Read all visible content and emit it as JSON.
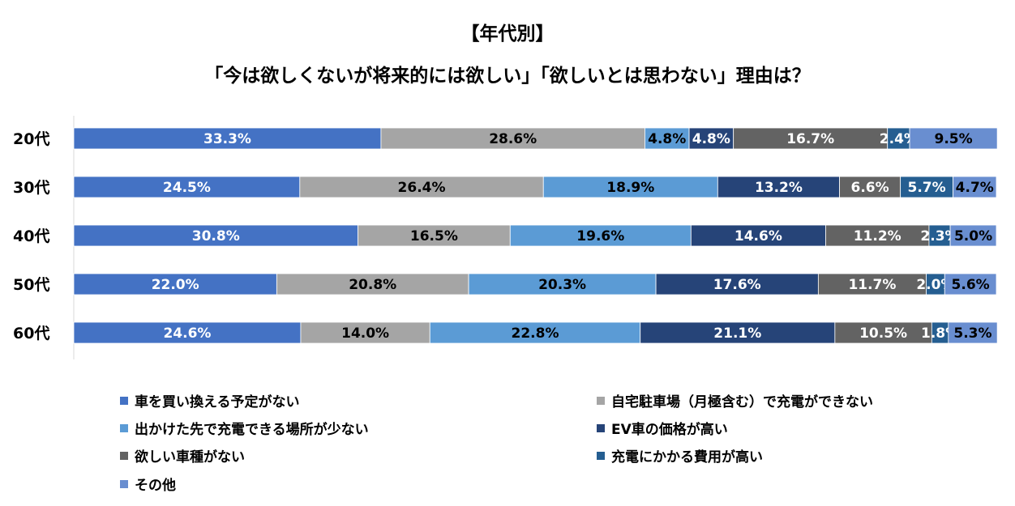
{
  "chart_data": {
    "type": "bar",
    "orientation": "horizontal",
    "stacked": true,
    "percent": true,
    "title": "【年代別】",
    "subtitle": "「今は欲しくないが将来的には欲しい」「欲しいとは思わない」理由は？",
    "categories": [
      "20代",
      "30代",
      "40代",
      "50代",
      "60代"
    ],
    "series": [
      {
        "name": "車を買い換える予定がない",
        "color": "#4472C4",
        "label_color": "#FFFFFF",
        "values": [
          33.3,
          24.5,
          30.8,
          22.0,
          24.6
        ],
        "labels": [
          "33.3%",
          "24.5%",
          "30.8%",
          "22.0%",
          "24.6%"
        ]
      },
      {
        "name": "自宅駐車場（月極含む）で充電ができない",
        "color": "#A5A5A5",
        "label_color": "#000000",
        "values": [
          28.6,
          26.4,
          16.5,
          20.8,
          14.0
        ],
        "labels": [
          "28.6%",
          "26.4%",
          "16.5%",
          "20.8%",
          "14.0%"
        ]
      },
      {
        "name": "出かけた先で充電できる場所が少ない",
        "color": "#5B9BD5",
        "label_color": "#000000",
        "values": [
          4.8,
          18.9,
          19.6,
          20.3,
          22.8
        ],
        "labels": [
          "4.8%",
          "18.9%",
          "19.6%",
          "20.3%",
          "22.8%"
        ]
      },
      {
        "name": "EV車の価格が高い",
        "color": "#264478",
        "label_color": "#FFFFFF",
        "values": [
          4.8,
          13.2,
          14.6,
          17.6,
          21.1
        ],
        "labels": [
          "4.8%",
          "13.2%",
          "14.6%",
          "17.6%",
          "21.1%"
        ]
      },
      {
        "name": "欲しい車種がない",
        "color": "#636363",
        "label_color": "#FFFFFF",
        "values": [
          16.7,
          6.6,
          11.2,
          11.7,
          10.5
        ],
        "labels": [
          "16.7%",
          "6.6%",
          "11.2%",
          "11.7%",
          "10.5%"
        ]
      },
      {
        "name": "充電にかかる費用が高い",
        "color": "#255E91",
        "label_color": "#FFFFFF",
        "values": [
          2.4,
          5.7,
          2.3,
          2.0,
          1.8
        ],
        "labels": [
          "2.4%",
          "5.7%",
          "2.3%",
          "2.0%",
          "1.8%"
        ]
      },
      {
        "name": "その他",
        "color": "#698ED0",
        "label_color": "#000000",
        "values": [
          9.5,
          4.7,
          5.0,
          5.6,
          5.3
        ],
        "labels": [
          "9.5%",
          "4.7%",
          "5.0%",
          "5.6%",
          "5.3%"
        ]
      }
    ],
    "xlim": [
      0,
      100
    ],
    "grid": false,
    "legend_position": "bottom"
  }
}
